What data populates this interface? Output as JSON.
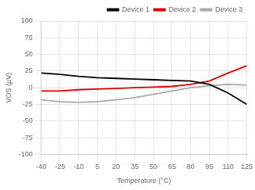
{
  "chart_data": {
    "type": "line",
    "xlabel": "Temperature (°C)",
    "ylabel": "VOS (μV)",
    "x": [
      -40,
      -25,
      -10,
      5,
      20,
      35,
      50,
      65,
      80,
      95,
      110,
      125
    ],
    "series": [
      {
        "name": "Device 1",
        "color": "#000000",
        "values": [
          22,
          20,
          17,
          15,
          14,
          13,
          12,
          11,
          10,
          5,
          -8,
          -25
        ]
      },
      {
        "name": "Device 2",
        "color": "#dd0000",
        "values": [
          -5,
          -5,
          -3,
          -2,
          -1,
          0,
          1,
          2,
          5,
          10,
          22,
          33
        ]
      },
      {
        "name": "Device 3",
        "color": "#aaaaaa",
        "values": [
          -18,
          -21,
          -22,
          -21,
          -18,
          -15,
          -10,
          -5,
          0,
          3,
          5,
          4
        ]
      }
    ],
    "xlim": [
      -40,
      125
    ],
    "ylim": [
      -100,
      100
    ],
    "xticks": [
      -40,
      -25,
      -10,
      5,
      20,
      35,
      50,
      65,
      80,
      95,
      110,
      125
    ],
    "yticks": [
      -100,
      -75,
      -50,
      -25,
      0,
      25,
      50,
      75,
      100
    ],
    "grid": true,
    "legend": "upper right"
  }
}
